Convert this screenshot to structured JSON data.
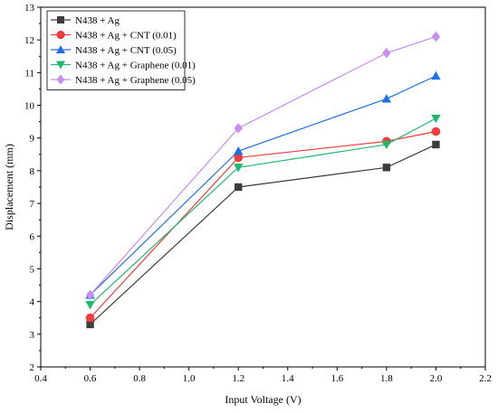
{
  "chart_data": {
    "type": "line",
    "xlabel": "Input Voltage (V)",
    "ylabel": "Displacement (mm)",
    "xlim": [
      0.4,
      2.2
    ],
    "ylim": [
      2,
      13
    ],
    "xticks": [
      "0.4",
      "0.6",
      "0.8",
      "1.0",
      "1.2",
      "1.4",
      "1.6",
      "1.8",
      "2.0",
      "2.2"
    ],
    "yticks": [
      "2",
      "3",
      "4",
      "5",
      "6",
      "7",
      "8",
      "9",
      "10",
      "11",
      "12",
      "13"
    ],
    "x": [
      0.6,
      1.2,
      1.8,
      2.0
    ],
    "legend_position": "top-left",
    "grid": false,
    "series": [
      {
        "name": "N438 + Ag",
        "marker": "square",
        "color": "#3d3d3d",
        "values": [
          3.3,
          7.5,
          8.1,
          8.8
        ]
      },
      {
        "name": "N438 + Ag + CNT (0.01)",
        "marker": "circle",
        "color": "#f03c3c",
        "values": [
          3.5,
          8.4,
          8.9,
          9.2
        ]
      },
      {
        "name": "N438 + Ag + CNT (0.05)",
        "marker": "triangle-up",
        "color": "#1f6fe6",
        "values": [
          4.2,
          8.6,
          10.2,
          10.9
        ]
      },
      {
        "name": "N438 + Ag + Graphene (0.01)",
        "marker": "triangle-down",
        "color": "#1fb86e",
        "values": [
          3.9,
          8.1,
          8.8,
          9.6
        ]
      },
      {
        "name": "N438 + Ag + Graphene (0.05)",
        "marker": "diamond",
        "color": "#c78df0",
        "values": [
          4.2,
          9.3,
          11.6,
          12.1
        ]
      }
    ]
  }
}
